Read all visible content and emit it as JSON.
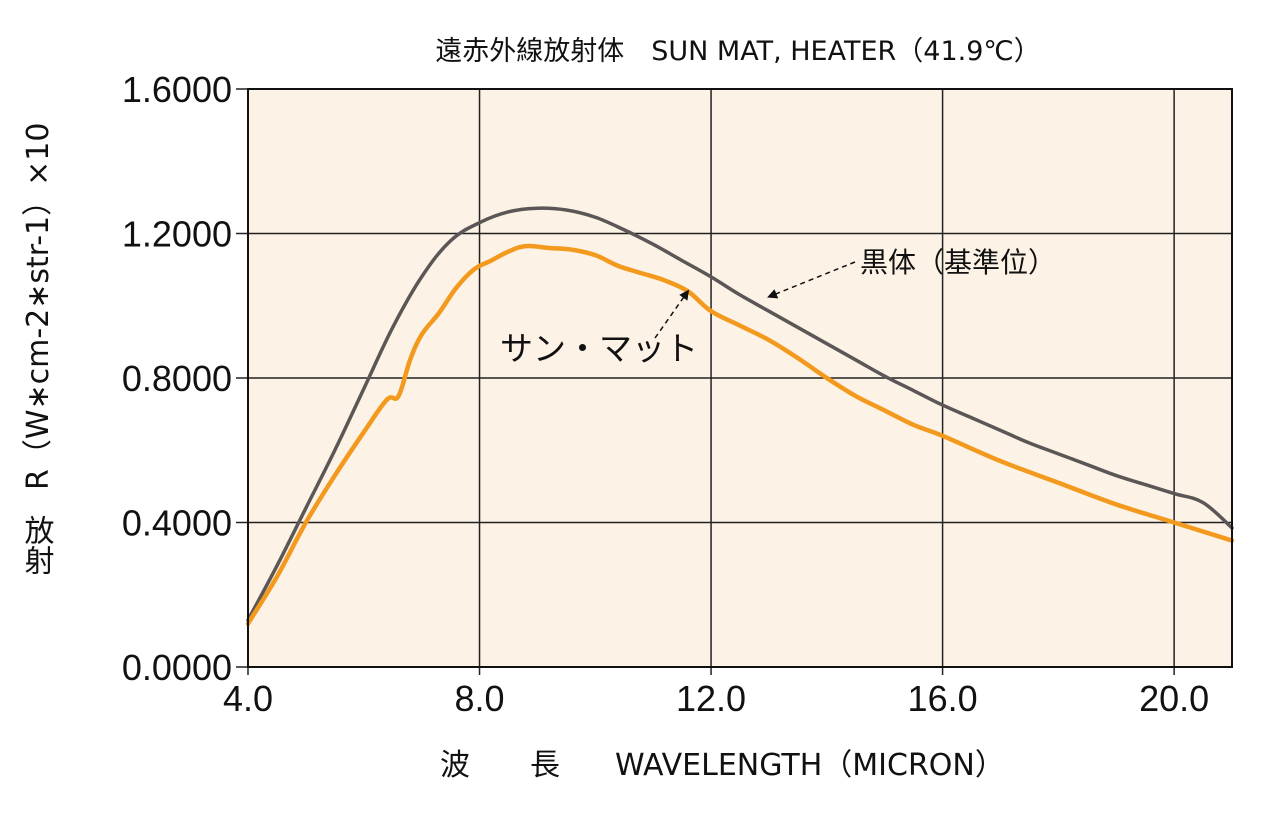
{
  "chart_data": {
    "type": "line",
    "title": "遠赤外線放射体　SUN MAT, HEATER（41.9℃）",
    "xlabel_ja": "波　　長",
    "xlabel": "WAVELENGTH（MICRON）",
    "ylabel": "R（W∗cm-2∗str-1）×10",
    "ylabel_ja": "放射",
    "xlim": [
      4.0,
      21.0
    ],
    "ylim": [
      0.0,
      1.6
    ],
    "xticks": [
      "4.0",
      "8.0",
      "12.0",
      "16.0",
      "20.0"
    ],
    "yticks": [
      "0.0000",
      "0.4000",
      "0.8000",
      "1.2000",
      "1.6000"
    ],
    "grid": true,
    "series": [
      {
        "name": "黒体（基準位）",
        "color": "#5a5756",
        "x": [
          4.0,
          4.5,
          5.0,
          5.5,
          6.0,
          6.5,
          7.0,
          7.5,
          8.0,
          8.5,
          9.0,
          9.5,
          10.0,
          10.5,
          11.0,
          11.5,
          12.0,
          12.5,
          13.0,
          13.5,
          14.0,
          14.5,
          15.0,
          15.5,
          16.0,
          16.5,
          17.0,
          17.5,
          18.0,
          18.5,
          19.0,
          19.5,
          20.0,
          20.5,
          21.0
        ],
        "y": [
          0.13,
          0.28,
          0.44,
          0.6,
          0.77,
          0.94,
          1.08,
          1.18,
          1.23,
          1.26,
          1.27,
          1.265,
          1.245,
          1.21,
          1.17,
          1.125,
          1.08,
          1.03,
          0.985,
          0.94,
          0.895,
          0.85,
          0.805,
          0.765,
          0.725,
          0.69,
          0.655,
          0.62,
          0.59,
          0.56,
          0.53,
          0.505,
          0.48,
          0.455,
          0.385
        ]
      },
      {
        "name": "サン・マット",
        "color": "#f39a1e",
        "x": [
          4.0,
          4.5,
          5.0,
          5.5,
          6.0,
          6.4,
          6.6,
          6.8,
          7.0,
          7.3,
          7.6,
          7.9,
          8.2,
          8.5,
          8.8,
          9.2,
          9.6,
          10.0,
          10.4,
          10.8,
          11.2,
          11.6,
          12.0,
          12.5,
          13.0,
          13.5,
          14.0,
          14.5,
          15.0,
          15.5,
          16.0,
          17.0,
          18.0,
          19.0,
          20.0,
          21.0
        ],
        "y": [
          0.12,
          0.25,
          0.4,
          0.53,
          0.65,
          0.74,
          0.75,
          0.85,
          0.92,
          0.98,
          1.05,
          1.1,
          1.125,
          1.15,
          1.165,
          1.16,
          1.155,
          1.14,
          1.11,
          1.09,
          1.07,
          1.04,
          0.985,
          0.945,
          0.905,
          0.855,
          0.8,
          0.75,
          0.71,
          0.67,
          0.64,
          0.57,
          0.51,
          0.45,
          0.4,
          0.35
        ]
      }
    ],
    "annotations": [
      {
        "text": "黒体（基準位）",
        "series": "黒体（基準位）",
        "arrow_at": [
          13.0,
          1.025
        ]
      },
      {
        "text": "サン・マット",
        "series": "サン・マット",
        "arrow_at": [
          11.6,
          1.04
        ]
      }
    ]
  },
  "colors": {
    "plot_background": "#fdf2e6",
    "grid": "#222222",
    "blackbody_line": "#5a5756",
    "sunmat_line": "#f39a1e"
  }
}
